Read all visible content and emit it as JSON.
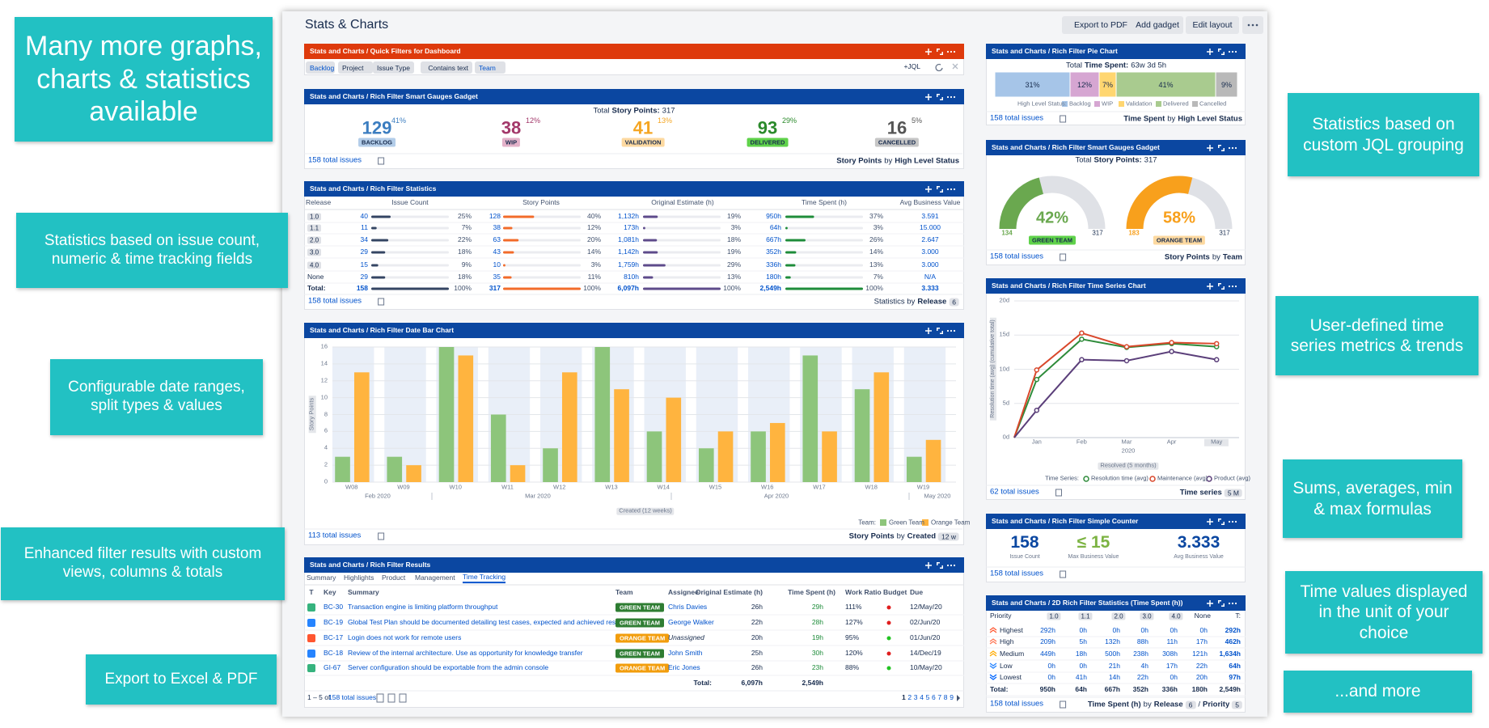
{
  "callouts": [
    "Many more graphs, charts & statistics available",
    "Statistics based on issue count, numeric & time tracking fields",
    "Configurable date ranges, split types & values",
    "Enhanced filter results with custom views, columns & totals",
    "Export to Excel & PDF",
    "Statistics based on custom JQL grouping",
    "User-defined time series metrics & trends",
    "Sums, averages, min & max formulas",
    "Time values displayed in the unit of your choice",
    "...and more"
  ],
  "dashboard": {
    "title": "Stats & Charts",
    "buttons": [
      "Export to PDF",
      "Add gadget",
      "Edit layout"
    ]
  },
  "quick_filters": {
    "title": "Stats and Charts / Quick Filters for Dashboard",
    "filters": [
      "Backlog",
      "Project",
      "Issue Type",
      "Contains text",
      "Team"
    ],
    "jql": "+JQL"
  },
  "gauges": {
    "title": "Stats and Charts / Rich Filter Smart Gauges Gadget",
    "total_label": "Total",
    "total_field": "Story Points:",
    "total_value": 317,
    "items": [
      {
        "value": 129,
        "percent": "41%",
        "label": "BACKLOG",
        "color": "#3b7dc0",
        "bg": "#b3cde9"
      },
      {
        "value": 38,
        "percent": "12%",
        "label": "WIP",
        "color": "#a3386a",
        "bg": "#e3b1c9"
      },
      {
        "value": 41,
        "percent": "13%",
        "label": "VALIDATION",
        "color": "#f5a623",
        "bg": "#fdd9a0"
      },
      {
        "value": 93,
        "percent": "29%",
        "label": "DELIVERED",
        "color": "#2b8a2b",
        "bg": "#5fd24a"
      },
      {
        "value": 16,
        "percent": "5%",
        "label": "CANCELLED",
        "color": "#555555",
        "bg": "#c6c6c6"
      }
    ],
    "footer": {
      "issues": "158 total issues",
      "note": [
        {
          "text": "Story Points",
          "style": "bold"
        },
        {
          "text": "by",
          "style": "plain"
        },
        {
          "text": "High Level Status",
          "style": "bold"
        }
      ]
    }
  },
  "statistics": {
    "title": "Stats and Charts / Rich Filter Statistics",
    "columns": [
      "Release",
      "Issue Count",
      "Story Points",
      "Original Estimate (h)",
      "Time Spent (h)",
      "Avg Business Value"
    ],
    "rows": [
      [
        "1.0",
        "40",
        "25%",
        "128",
        "40%",
        "1,132h",
        "19%",
        "950h",
        "37%",
        "3.591"
      ],
      [
        "1.1",
        "11",
        "7%",
        "38",
        "12%",
        "173h",
        "3%",
        "64h",
        "3%",
        "15.000"
      ],
      [
        "2.0",
        "34",
        "22%",
        "63",
        "20%",
        "1,081h",
        "18%",
        "667h",
        "26%",
        "2.647"
      ],
      [
        "3.0",
        "29",
        "18%",
        "43",
        "14%",
        "1,142h",
        "19%",
        "352h",
        "14%",
        "3.000"
      ],
      [
        "4.0",
        "15",
        "9%",
        "10",
        "3%",
        "1,759h",
        "29%",
        "336h",
        "13%",
        "3.000"
      ],
      [
        "None",
        "29",
        "18%",
        "35",
        "11%",
        "810h",
        "13%",
        "180h",
        "7%",
        "N/A"
      ],
      [
        "Total:",
        "158",
        "100%",
        "317",
        "100%",
        "6,097h",
        "100%",
        "2,549h",
        "100%",
        "3.333"
      ]
    ],
    "footer": {
      "issues": "158 total issues",
      "note": [
        {
          "text": "Statistics by",
          "style": "plain"
        },
        {
          "text": "Release",
          "style": "bold"
        },
        {
          "text": "6",
          "style": "badge"
        }
      ]
    }
  },
  "date_chart": {
    "title": "Stats and Charts / Rich Filter Date Bar Chart",
    "y_label": "Story Points",
    "ylim": [
      0,
      16
    ],
    "yticks": [
      0,
      2,
      4,
      6,
      8,
      10,
      12,
      14,
      16
    ],
    "categories": [
      "W08",
      "W09",
      "W10",
      "W11",
      "W12",
      "W13",
      "W14",
      "W15",
      "W16",
      "W17",
      "W18",
      "W19"
    ],
    "months": [
      "Feb 2020",
      "Mar 2020",
      "Apr 2020",
      "May 2020"
    ],
    "x_title": "Created (12 weeks)",
    "legend_title": "Team:",
    "series": [
      {
        "name": "Green Team",
        "color": "#8dc57b",
        "values": [
          3,
          3,
          16,
          8,
          4,
          16,
          6,
          4,
          6,
          15,
          11,
          3
        ]
      },
      {
        "name": "Orange Team",
        "color": "#ffb43f",
        "values": [
          13,
          2,
          15,
          2,
          13,
          11,
          10,
          6,
          7,
          6,
          13,
          5
        ]
      }
    ],
    "footer": {
      "issues": "113 total issues",
      "note": [
        {
          "text": "Story Points",
          "style": "bold"
        },
        {
          "text": "by",
          "style": "plain"
        },
        {
          "text": "Created",
          "style": "bold"
        },
        {
          "text": "12 w",
          "style": "badge"
        }
      ]
    }
  },
  "results": {
    "title": "Stats and Charts / Rich Filter Results",
    "tabs": [
      "Summary",
      "Highlights",
      "Product",
      "Management",
      "Time Tracking"
    ],
    "columns": [
      "T",
      "Key",
      "Summary",
      "Team",
      "Assignee",
      "Original Estimate (h)",
      "Time Spent (h)",
      "Work Ratio",
      "Budget",
      "Due"
    ],
    "rows": [
      {
        "type_color": "#36b37e",
        "key": "BC-30",
        "summary": "Transaction engine is limiting platform throughput",
        "team": "GREEN TEAM",
        "team_color": "#2e7d32",
        "assignee": "Chris Davies",
        "estimate": "26h",
        "spent": "29h",
        "ratio": "111%",
        "budget_color": "#e01e1e",
        "due": "12/May/20"
      },
      {
        "type_color": "#2684ff",
        "key": "BC-19",
        "summary": "Global Test Plan should be documented detailing test cases, expected and achieved results",
        "team": "GREEN TEAM",
        "team_color": "#2e7d32",
        "assignee": "George Walker",
        "estimate": "22h",
        "spent": "28h",
        "ratio": "127%",
        "budget_color": "#e01e1e",
        "due": "02/Jun/20"
      },
      {
        "type_color": "#ff5630",
        "key": "BC-17",
        "summary": "Login does not work for remote users",
        "team": "ORANGE TEAM",
        "team_color": "#f29d0c",
        "assignee": "Unassigned",
        "estimate": "20h",
        "spent": "19h",
        "ratio": "95%",
        "budget_color": "#22c322",
        "due": "01/Jun/20"
      },
      {
        "type_color": "#2684ff",
        "key": "BC-18",
        "summary": "Review of the internal architecture. Use as opportunity for knowledge transfer",
        "team": "GREEN TEAM",
        "team_color": "#2e7d32",
        "assignee": "John Smith",
        "estimate": "25h",
        "spent": "30h",
        "ratio": "120%",
        "budget_color": "#e01e1e",
        "due": "14/Dec/19"
      },
      {
        "type_color": "#36b37e",
        "key": "GI-67",
        "summary": "Server configuration should be exportable from the admin console",
        "team": "ORANGE TEAM",
        "team_color": "#f29d0c",
        "assignee": "Eric Jones",
        "estimate": "26h",
        "spent": "23h",
        "ratio": "88%",
        "budget_color": "#22c322",
        "due": "10/May/20"
      }
    ],
    "total": {
      "label": "Total:",
      "estimate": "6,097h",
      "spent": "2,549h"
    },
    "footer": {
      "range": "1 – 5 of",
      "issues": "158 total issues",
      "pages": [
        1,
        2,
        3,
        4,
        5,
        6,
        7,
        8,
        9
      ]
    }
  },
  "pie": {
    "title": "Stats and Charts / Rich Filter Pie Chart",
    "total_label": "Total",
    "total_field": "Time Spent:",
    "total_value": "63w 3d 5h",
    "legend_title": "High Level Status:",
    "categories": [
      "Backlog",
      "WIP",
      "Validation",
      "Delivered",
      "Cancelled"
    ],
    "values": [
      31,
      12,
      7,
      41,
      9
    ],
    "value_labels": [
      "31%",
      "12%",
      "7%",
      "41%",
      "9%"
    ],
    "colors": [
      "#a6c5e8",
      "#d6a6d2",
      "#ffd670",
      "#a9cb8f",
      "#b9b9b9"
    ],
    "footer": {
      "issues": "158 total issues",
      "note": [
        {
          "text": "Time Spent",
          "style": "bold"
        },
        {
          "text": "by",
          "style": "plain"
        },
        {
          "text": "High Level Status",
          "style": "bold"
        }
      ]
    }
  },
  "team_gauges": {
    "title": "Stats and Charts / Rich Filter Smart Gauges Gadget",
    "total_label": "Total",
    "total_field": "Story Points:",
    "total_value": 317,
    "items": [
      {
        "value": 42,
        "value_label": "42%",
        "min": 134,
        "max": 317,
        "label": "GREEN TEAM",
        "color": "#6aa84f",
        "bg": "#5fd24a"
      },
      {
        "value": 58,
        "value_label": "58%",
        "min": 183,
        "max": 317,
        "label": "ORANGE TEAM",
        "color": "#f8a01c",
        "bg": "#fdd9a0"
      }
    ],
    "footer": {
      "issues": "158 total issues",
      "note": [
        {
          "text": "Story Points",
          "style": "bold"
        },
        {
          "text": "by",
          "style": "plain"
        },
        {
          "text": "Team",
          "style": "bold"
        }
      ]
    }
  },
  "time_series": {
    "title": "Stats and Charts / Rich Filter Time Series Chart",
    "y_label": "Resolution time (avg) (cumulative total)",
    "ylim": [
      0,
      20
    ],
    "yticks": [
      {
        "value": 0,
        "label": "0d"
      },
      {
        "value": 5,
        "label": "5d"
      },
      {
        "value": 10,
        "label": "10d"
      },
      {
        "value": 15,
        "label": "15d"
      },
      {
        "value": 20,
        "label": "20d"
      }
    ],
    "categories": [
      null,
      "Jan",
      "Feb",
      "Mar",
      "Apr",
      "May"
    ],
    "year": "2020",
    "x_title": "Resolved (5 months)",
    "legend_title": "Time Series:",
    "series": [
      {
        "name": "Resolution time (avg)",
        "color": "#2e8b3a",
        "values": [
          0,
          8.5,
          14.4,
          13.2,
          13.75,
          13.3
        ]
      },
      {
        "name": "Maintenance (avg)",
        "color": "#d9472b",
        "values": [
          0,
          9.9,
          15.3,
          13.3,
          13.9,
          13.75
        ]
      },
      {
        "name": "Product (avg)",
        "color": "#5b3f7a",
        "values": [
          0,
          4,
          11.4,
          11.25,
          12.6,
          11.4
        ]
      }
    ],
    "footer": {
      "issues": "62 total issues",
      "note": [
        {
          "text": "Time series",
          "style": "bold"
        },
        {
          "text": "5 M",
          "style": "badge"
        }
      ]
    }
  },
  "counter": {
    "title": "Stats and Charts / Rich Filter Simple Counter",
    "items": [
      {
        "value": "158",
        "label": "Issue Count",
        "color": "#0b47a1"
      },
      {
        "value": "≤ 15",
        "label": "Max Business Value",
        "color": "#7cb342"
      },
      {
        "value": "3.333",
        "label": "Avg Business Value",
        "color": "#0b47a1"
      }
    ],
    "footer": {
      "issues": "158 total issues"
    }
  },
  "priority_table": {
    "title": "Stats and Charts / 2D Rich Filter Statistics (Time Spent (h))",
    "columns": [
      "Priority",
      "1.0",
      "1.1",
      "2.0",
      "3.0",
      "4.0",
      "None",
      "T:"
    ],
    "rows": [
      [
        "Highest",
        "292h",
        "0h",
        "0h",
        "0h",
        "0h",
        "0h",
        "292h"
      ],
      [
        "High",
        "209h",
        "5h",
        "132h",
        "88h",
        "11h",
        "17h",
        "462h"
      ],
      [
        "Medium",
        "449h",
        "18h",
        "500h",
        "238h",
        "308h",
        "121h",
        "1,634h"
      ],
      [
        "Low",
        "0h",
        "0h",
        "21h",
        "4h",
        "17h",
        "22h",
        "64h"
      ],
      [
        "Lowest",
        "0h",
        "41h",
        "14h",
        "22h",
        "0h",
        "20h",
        "97h"
      ],
      [
        "Total:",
        "950h",
        "64h",
        "667h",
        "352h",
        "336h",
        "180h",
        "2,549h"
      ]
    ],
    "footer": {
      "issues": "158 total issues",
      "note": [
        {
          "text": "Time Spent (h)",
          "style": "bold"
        },
        {
          "text": "by",
          "style": "plain"
        },
        {
          "text": "Release",
          "style": "bold"
        },
        {
          "text": "6",
          "style": "badge"
        },
        {
          "text": "/",
          "style": "plain"
        },
        {
          "text": "Priority",
          "style": "bold"
        },
        {
          "text": "5",
          "style": "badge"
        }
      ]
    }
  }
}
